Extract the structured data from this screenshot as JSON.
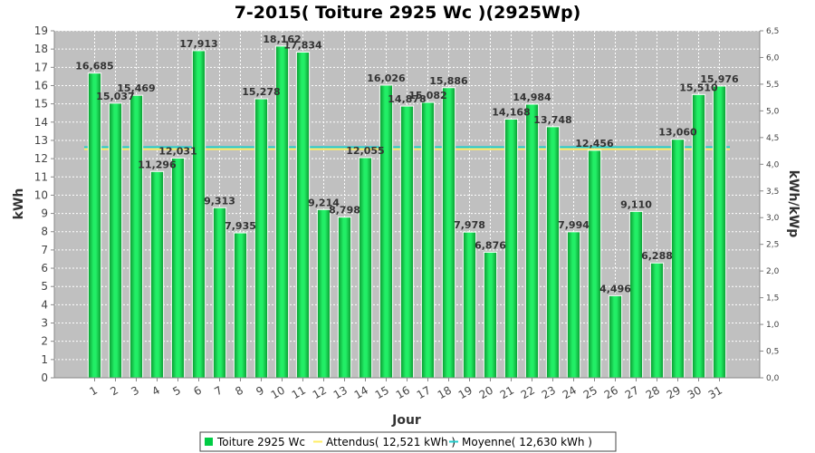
{
  "chart_data": {
    "type": "bar",
    "title": "7-2015( Toiture 2925 Wc )(2925Wp)",
    "xlabel": "Jour",
    "ylabel": "kWh",
    "ylabel_right": "kWh/kWp",
    "ylim": [
      0,
      19
    ],
    "ylim_right": [
      0,
      6.5
    ],
    "y_ticks": [
      "0",
      "1",
      "2",
      "3",
      "4",
      "5",
      "6",
      "7",
      "8",
      "9",
      "10",
      "11",
      "12",
      "13",
      "14",
      "15",
      "16",
      "17",
      "18",
      "19"
    ],
    "y_ticks_right": [
      "0,0",
      "0,5",
      "1,0",
      "1,5",
      "2,0",
      "2,5",
      "3,0",
      "3,5",
      "4,0",
      "4,5",
      "5,0",
      "5,5",
      "6,0",
      "6,5"
    ],
    "categories": [
      "1",
      "2",
      "3",
      "4",
      "5",
      "6",
      "7",
      "8",
      "9",
      "10",
      "11",
      "12",
      "13",
      "14",
      "15",
      "16",
      "17",
      "18",
      "19",
      "20",
      "21",
      "22",
      "23",
      "24",
      "25",
      "26",
      "27",
      "28",
      "29",
      "30",
      "31"
    ],
    "series": [
      {
        "name": "Toiture 2925 Wc",
        "color": "#00cc44",
        "values": [
          16.685,
          15.037,
          15.469,
          11.296,
          12.031,
          17.913,
          9.313,
          7.935,
          15.278,
          18.162,
          17.834,
          9.214,
          8.798,
          12.055,
          16.026,
          14.878,
          15.082,
          15.886,
          7.978,
          6.876,
          14.168,
          14.984,
          13.748,
          7.994,
          12.456,
          4.496,
          9.11,
          6.288,
          13.06,
          15.51,
          15.976
        ],
        "labels": [
          "16,685",
          "15,037",
          "15,469",
          "11,296",
          "12,031",
          "17,913",
          "9,313",
          "7,935",
          "15,278",
          "18,162",
          "17,834",
          "9,214",
          "8,798",
          "12,055",
          "16,026",
          "14,878",
          "15,082",
          "15,886",
          "7,978",
          "6,876",
          "14,168",
          "14,984",
          "13,748",
          "7,994",
          "12,456",
          "4,496",
          "9,110",
          "6,288",
          "13,060",
          "15,510",
          "15,976"
        ]
      }
    ],
    "reference_lines": [
      {
        "name": "Attendus( 12,521 kWh )",
        "value": 12.521,
        "color": "#ffee66"
      },
      {
        "name": "Moyenne( 12,630 kWh )",
        "value": 12.63,
        "color": "#22cccc"
      }
    ],
    "grid": true,
    "legend_position": "bottom",
    "plot_background": "#c0c0c0"
  }
}
